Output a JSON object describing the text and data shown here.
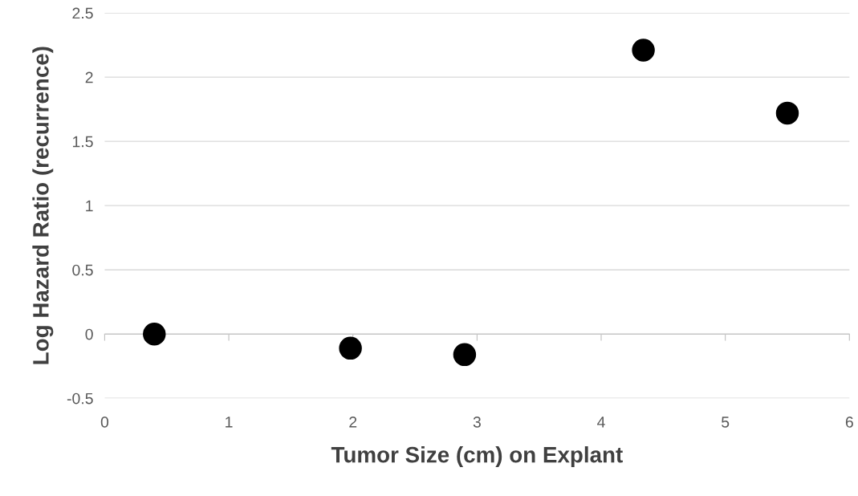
{
  "chart_data": {
    "type": "scatter",
    "xlabel": "Tumor Size (cm) on Explant",
    "ylabel": "Log Hazard Ratio (recurrence)",
    "x": [
      0.4,
      1.98,
      2.9,
      4.34,
      5.5
    ],
    "series": [
      {
        "color": "#000000",
        "values": [
          0.0,
          -0.11,
          -0.16,
          2.21,
          1.72
        ]
      }
    ],
    "xlim": [
      0,
      6
    ],
    "xticks": [
      0,
      1,
      2,
      3,
      4,
      5,
      6
    ],
    "ylim": [
      -0.5,
      2.5
    ],
    "yticks": [
      -0.5,
      0,
      0.5,
      1,
      1.5,
      2,
      2.5
    ],
    "grid": "y",
    "marker": "circle"
  }
}
